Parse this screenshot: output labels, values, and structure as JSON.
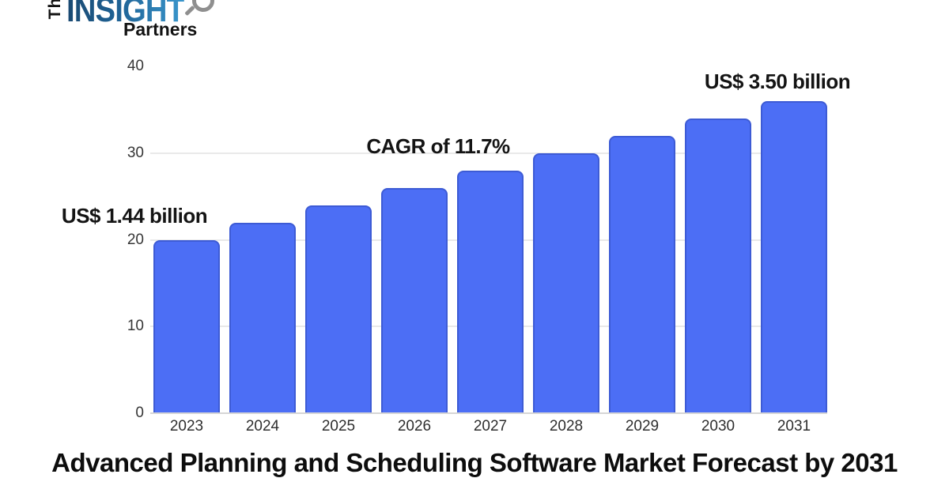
{
  "logo": {
    "the": "The",
    "insight": "INSIGHT",
    "partners": "Partners",
    "insight_blue_dark": "#1a4971",
    "insight_blue_light": "#3a97cd",
    "magnifier_gray": "#8f8f8f"
  },
  "title": "Advanced Planning and Scheduling Software Market Forecast by 2031",
  "chart_data": {
    "type": "bar",
    "title": "Advanced Planning and Scheduling Software Market Forecast by 2031",
    "categories": [
      "2023",
      "2024",
      "2025",
      "2026",
      "2027",
      "2028",
      "2029",
      "2030",
      "2031"
    ],
    "values": [
      20,
      22,
      24,
      26,
      28,
      30,
      32,
      34,
      36
    ],
    "xlabel": "",
    "ylabel": "",
    "ylim": [
      0,
      40
    ],
    "yticks": [
      0,
      10,
      20,
      30,
      40
    ],
    "gridline_values": [
      10,
      20,
      30
    ],
    "grid": "horizontal",
    "legend": "none",
    "bar_color": "#4C6EF5",
    "bar_border_color": "#3d5bd5",
    "annotations": [
      {
        "id": "start-value",
        "text": "US$ 1.44 billion",
        "refers_to": "2023"
      },
      {
        "id": "cagr",
        "text": "CAGR of 11.7%",
        "refers_to": "2023-2031"
      },
      {
        "id": "end-value",
        "text": "US$ 3.50 billion",
        "refers_to": "2031"
      }
    ]
  }
}
